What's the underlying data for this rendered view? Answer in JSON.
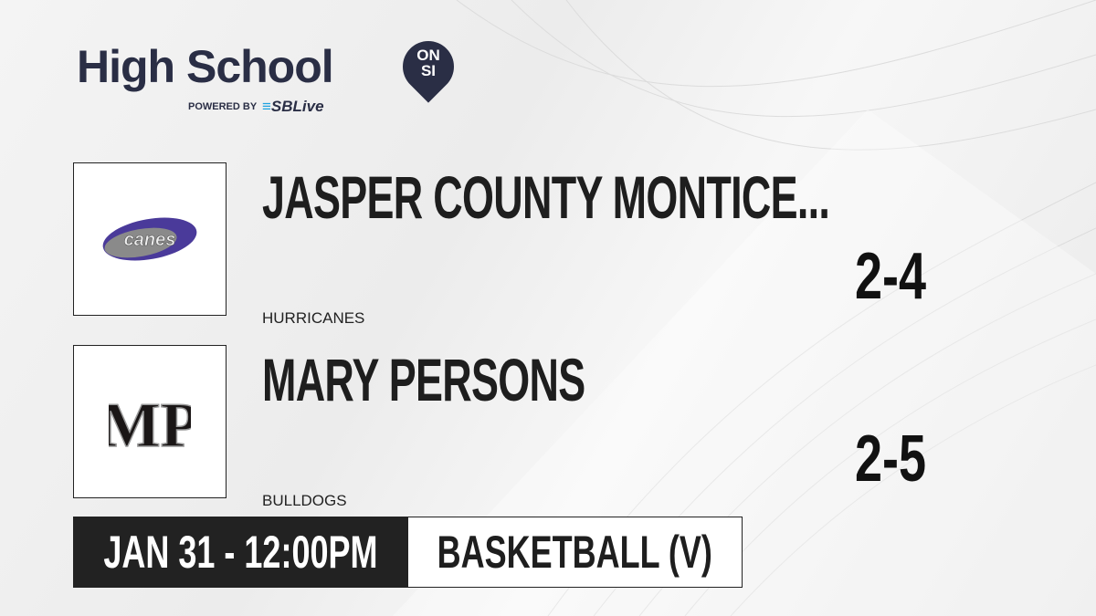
{
  "brand": {
    "title": "High School",
    "badge_top": "ON",
    "badge_bottom": "SI",
    "powered_by": "POWERED BY",
    "partner": "SBLive",
    "partner_color": "#1fa3e0",
    "brand_color": "#2a2e45"
  },
  "teams": [
    {
      "name": "JASPER COUNTY MONTICE...",
      "mascot": "HURRICANES",
      "record": "2-4",
      "logo_text": "canes",
      "logo_color": "#4a3a9a"
    },
    {
      "name": "MARY PERSONS",
      "mascot": "BULLDOGS",
      "record": "2-5",
      "logo_text": "MP",
      "logo_color": "#1a1616"
    }
  ],
  "game": {
    "datetime": "JAN 31 - 12:00PM",
    "sport": "BASKETBALL (V)"
  }
}
